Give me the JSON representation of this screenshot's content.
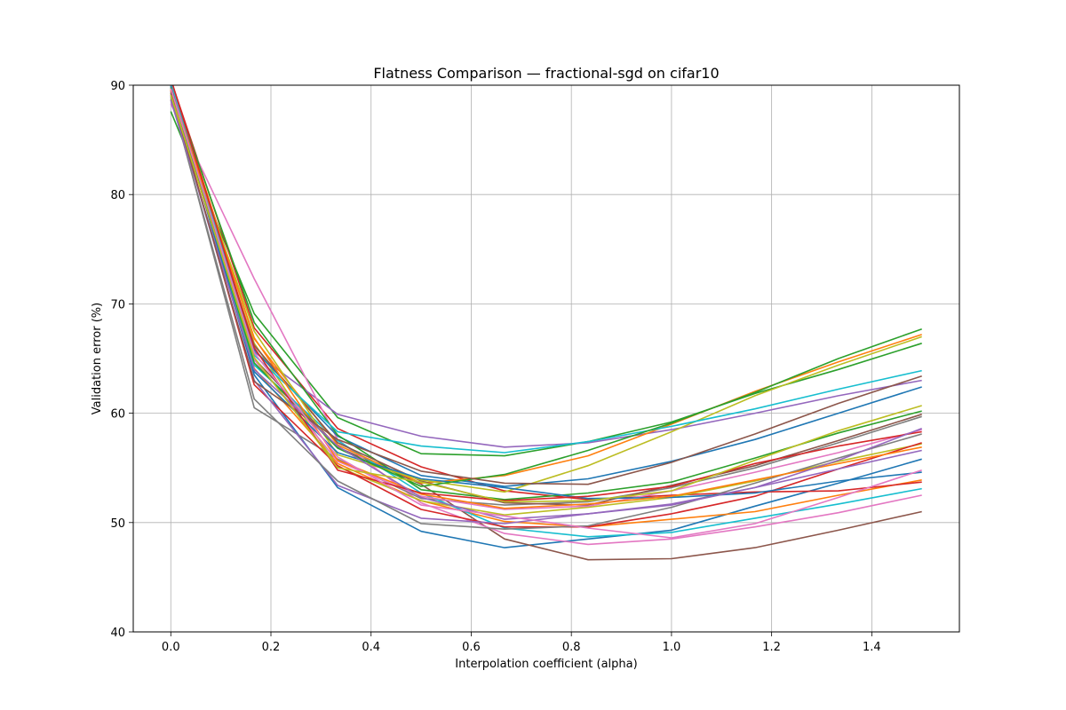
{
  "chart_data": {
    "type": "line",
    "title": "Flatness Comparison — fractional-sgd on cifar10",
    "xlabel": "Interpolation coefficient (alpha)",
    "ylabel": "Validation error (%)",
    "xlim": [
      -0.075,
      1.575
    ],
    "ylim": [
      40,
      90
    ],
    "xticks": [
      "0.0",
      "0.2",
      "0.4",
      "0.6",
      "0.8",
      "1.0",
      "1.2",
      "1.4"
    ],
    "yticks": [
      "40",
      "50",
      "60",
      "70",
      "80",
      "90"
    ],
    "grid": true,
    "x": [
      0.0,
      0.1667,
      0.3333,
      0.5,
      0.6667,
      0.8333,
      1.0,
      1.1667,
      1.3333,
      1.5
    ],
    "series": [
      {
        "color": "#1f77b4",
        "values": [
          90.0,
          63.5,
          53.2,
          49.2,
          47.7,
          48.5,
          49.3,
          51.5,
          53.6,
          55.8
        ]
      },
      {
        "color": "#ff7f0e",
        "values": [
          89.6,
          64.1,
          55.4,
          52.0,
          50.1,
          49.6,
          50.3,
          51.0,
          52.5,
          53.9
        ]
      },
      {
        "color": "#2ca02c",
        "values": [
          87.6,
          69.1,
          59.6,
          56.3,
          56.1,
          57.4,
          59.2,
          61.8,
          64.0,
          66.4
        ]
      },
      {
        "color": "#d62728",
        "values": [
          90.5,
          67.8,
          58.6,
          55.1,
          52.9,
          52.1,
          52.5,
          52.8,
          52.9,
          53.7
        ]
      },
      {
        "color": "#9467bd",
        "values": [
          89.4,
          65.6,
          59.9,
          57.9,
          56.9,
          57.3,
          58.5,
          60.0,
          61.6,
          63.0
        ]
      },
      {
        "color": "#8c564b",
        "values": [
          89.8,
          65.0,
          56.9,
          53.5,
          48.5,
          46.6,
          46.7,
          47.7,
          49.3,
          51.0
        ]
      },
      {
        "color": "#e377c2",
        "values": [
          88.3,
          72.3,
          57.6,
          51.8,
          49.0,
          48.0,
          48.5,
          49.6,
          50.9,
          52.5
        ]
      },
      {
        "color": "#7f7f7f",
        "values": [
          89.1,
          60.5,
          55.8,
          52.2,
          51.6,
          51.9,
          53.2,
          55.0,
          57.3,
          59.7
        ]
      },
      {
        "color": "#bcbd22",
        "values": [
          89.3,
          66.4,
          55.1,
          52.0,
          50.7,
          51.4,
          52.3,
          53.8,
          55.6,
          57.2
        ]
      },
      {
        "color": "#17becf",
        "values": [
          89.9,
          64.4,
          57.5,
          52.7,
          49.5,
          48.7,
          49.1,
          50.4,
          51.7,
          53.1
        ]
      },
      {
        "color": "#1f77b4",
        "values": [
          89.7,
          65.8,
          57.9,
          54.3,
          53.3,
          54.0,
          55.6,
          57.6,
          60.0,
          62.4
        ]
      },
      {
        "color": "#ff7f0e",
        "values": [
          90.3,
          66.8,
          57.1,
          53.6,
          54.3,
          56.1,
          59.0,
          62.0,
          64.7,
          67.2
        ]
      },
      {
        "color": "#2ca02c",
        "values": [
          90.1,
          68.3,
          58.0,
          53.0,
          52.1,
          52.7,
          53.7,
          55.9,
          58.2,
          60.2
        ]
      },
      {
        "color": "#d62728",
        "values": [
          89.5,
          62.6,
          55.2,
          51.2,
          49.6,
          49.6,
          50.8,
          52.4,
          54.9,
          57.3
        ]
      },
      {
        "color": "#9467bd",
        "values": [
          89.0,
          63.0,
          53.4,
          50.4,
          49.9,
          50.8,
          51.7,
          53.2,
          54.9,
          56.6
        ]
      },
      {
        "color": "#8c564b",
        "values": [
          88.7,
          66.2,
          57.3,
          53.8,
          51.8,
          51.6,
          53.4,
          55.2,
          57.5,
          59.9
        ]
      },
      {
        "color": "#e377c2",
        "values": [
          90.2,
          64.9,
          55.6,
          52.4,
          51.2,
          51.5,
          52.9,
          54.6,
          56.4,
          58.5
        ]
      },
      {
        "color": "#7f7f7f",
        "values": [
          88.9,
          61.3,
          53.8,
          49.9,
          49.4,
          49.7,
          51.4,
          53.6,
          55.9,
          58.1
        ]
      },
      {
        "color": "#bcbd22",
        "values": [
          89.2,
          67.5,
          56.2,
          53.9,
          52.8,
          55.2,
          58.3,
          61.6,
          64.4,
          67.0
        ]
      },
      {
        "color": "#17becf",
        "values": [
          90.4,
          65.3,
          58.3,
          57.0,
          56.4,
          57.4,
          58.8,
          60.4,
          62.2,
          63.9
        ]
      },
      {
        "color": "#1f77b4",
        "values": [
          89.9,
          63.8,
          56.4,
          54.0,
          53.2,
          52.2,
          52.3,
          52.7,
          53.8,
          54.6
        ]
      },
      {
        "color": "#ff7f0e",
        "values": [
          89.6,
          66.9,
          55.7,
          52.6,
          51.3,
          51.7,
          52.4,
          53.9,
          55.4,
          56.9
        ]
      },
      {
        "color": "#2ca02c",
        "values": [
          89.8,
          64.6,
          56.8,
          53.3,
          54.4,
          56.6,
          59.1,
          61.9,
          65.0,
          67.7
        ]
      },
      {
        "color": "#d62728",
        "values": [
          90.6,
          66.0,
          54.8,
          52.7,
          52.0,
          52.4,
          53.3,
          55.4,
          57.0,
          58.3
        ]
      },
      {
        "color": "#9467bd",
        "values": [
          88.6,
          64.0,
          57.0,
          52.3,
          50.3,
          50.8,
          51.6,
          53.2,
          55.7,
          58.6
        ]
      },
      {
        "color": "#8c564b",
        "values": [
          89.3,
          62.9,
          57.6,
          54.7,
          53.6,
          53.5,
          55.5,
          58.1,
          60.9,
          63.4
        ]
      },
      {
        "color": "#e377c2",
        "values": [
          89.7,
          65.5,
          56.0,
          51.6,
          50.6,
          49.5,
          48.6,
          49.9,
          52.3,
          54.8
        ]
      },
      {
        "color": "#bcbd22",
        "values": [
          89.1,
          65.1,
          55.0,
          53.7,
          51.9,
          52.0,
          52.9,
          55.7,
          58.4,
          60.7
        ]
      }
    ]
  }
}
